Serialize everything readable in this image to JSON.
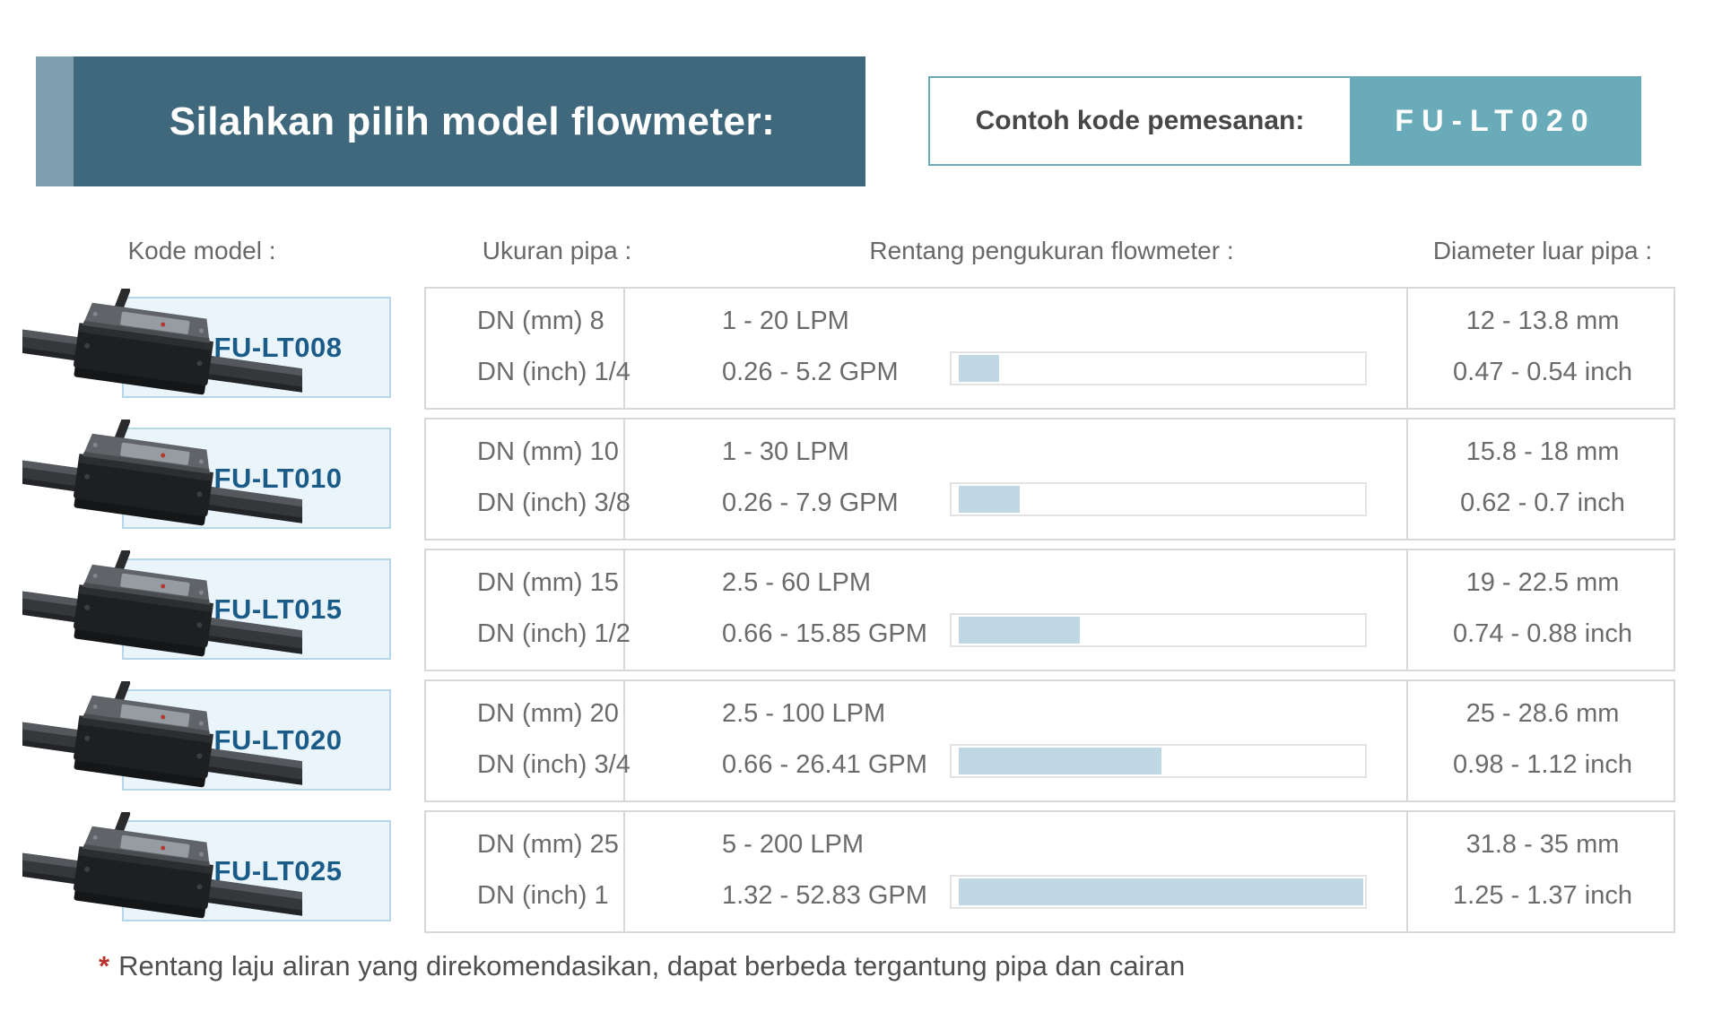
{
  "header": {
    "title": "Silahkan pilih model flowmeter:",
    "order_example_label": "Contoh kode pemesanan:",
    "order_example_code": "FU-LT020"
  },
  "columns": {
    "model": "Kode model :",
    "pipe_size": "Ukuran pipa :",
    "flow_range": "Rentang pengukuran flowmeter :",
    "outer_diameter": "Diameter luar pipa :"
  },
  "rows": [
    {
      "model": "FU-LT008",
      "dn_mm": "DN (mm) 8",
      "dn_inch": "DN (inch) 1/4",
      "lpm": "1 - 20 LPM",
      "gpm": "0.26 - 5.2 GPM",
      "bar_percent": 10,
      "dia_mm": "12 - 13.8 mm",
      "dia_inch": "0.47 - 0.54 inch"
    },
    {
      "model": "FU-LT010",
      "dn_mm": "DN (mm) 10",
      "dn_inch": "DN (inch) 3/8",
      "lpm": "1 - 30 LPM",
      "gpm": "0.26 - 7.9 GPM",
      "bar_percent": 15,
      "dia_mm": "15.8 - 18 mm",
      "dia_inch": "0.62 - 0.7 inch"
    },
    {
      "model": "FU-LT015",
      "dn_mm": "DN (mm) 15",
      "dn_inch": "DN (inch) 1/2",
      "lpm": "2.5 - 60 LPM",
      "gpm": "0.66 - 15.85 GPM",
      "bar_percent": 30,
      "dia_mm": "19 - 22.5 mm",
      "dia_inch": "0.74 - 0.88 inch"
    },
    {
      "model": "FU-LT020",
      "dn_mm": "DN (mm) 20",
      "dn_inch": "DN (inch) 3/4",
      "lpm": "2.5 - 100 LPM",
      "gpm": "0.66 - 26.41 GPM",
      "bar_percent": 50,
      "dia_mm": "25 - 28.6 mm",
      "dia_inch": "0.98 - 1.12 inch"
    },
    {
      "model": "FU-LT025",
      "dn_mm": "DN (mm) 25",
      "dn_inch": "DN (inch) 1",
      "lpm": "5 - 200 LPM",
      "gpm": "1.32 - 52.83 GPM",
      "bar_percent": 100,
      "dia_mm": "31.8 - 35 mm",
      "dia_inch": "1.25 - 1.37 inch"
    }
  ],
  "footnote": {
    "marker": "*",
    "text": "Rentang laju aliran yang direkomendasikan, dapat berbeda tergantung pipa dan cairan"
  },
  "colors": {
    "banner-bg": "#3f687d",
    "banner-accent": "#7d9eae",
    "teal": "#6aabba",
    "order-label-text": "#474747",
    "header-text": "#686868",
    "cell-text": "#6b6b6b",
    "row-border": "#d8d8d8",
    "bar-border": "#e3e3e3",
    "bar-fill": "#c0d7e4",
    "model-bg": "#eaf4fb",
    "model-border": "#b7d6e8",
    "model-text": "#1a5b88",
    "note-red": "#b8342c",
    "note-text": "#4f4f4f"
  }
}
